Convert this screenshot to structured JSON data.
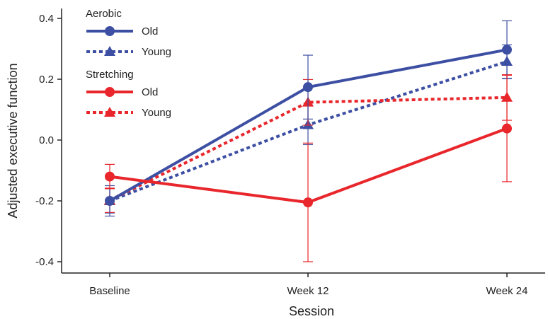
{
  "chart_data": {
    "type": "line",
    "categories": [
      "Baseline",
      "Week 12",
      "Week 24"
    ],
    "xlabel": "Session",
    "ylabel": "Adjusted executive function",
    "ylim": [
      -0.45,
      0.42
    ],
    "yticks": [
      "0.4",
      "0.2",
      "0.0",
      "-0.2",
      "-0.4"
    ],
    "ytick_values": [
      0.4,
      0.2,
      0.0,
      -0.2,
      -0.4
    ],
    "legend_groups": [
      {
        "title": "Aerobic",
        "entries": [
          "Old",
          "Young"
        ]
      },
      {
        "title": "Stretching",
        "entries": [
          "Old",
          "Young"
        ]
      }
    ],
    "legend_position": "top-left",
    "colors": {
      "aerobic": "#3d4fa3",
      "stretching": "#e8262b"
    },
    "series": [
      {
        "group": "Aerobic",
        "name": "Old",
        "color": "#3d4fa3",
        "dash": "solid",
        "marker": "circle",
        "values": [
          -0.2,
          0.174,
          0.297
        ],
        "err": [
          0.05,
          0.105,
          0.095
        ]
      },
      {
        "group": "Aerobic",
        "name": "Young",
        "color": "#3d4fa3",
        "dash": "dotted",
        "marker": "triangle",
        "values": [
          -0.2,
          0.05,
          0.258
        ],
        "err": [
          0.04,
          0.065,
          0.055
        ]
      },
      {
        "group": "Stretching",
        "name": "Old",
        "color": "#e8262b",
        "dash": "solid",
        "marker": "circle",
        "values": [
          -0.12,
          -0.205,
          0.038
        ],
        "err": [
          0.04,
          0.195,
          0.175
        ]
      },
      {
        "group": "Stretching",
        "name": "Young",
        "color": "#e8262b",
        "dash": "dotted",
        "marker": "triangle",
        "values": [
          -0.198,
          0.124,
          0.14
        ],
        "err": [
          0.04,
          0.075,
          0.075
        ]
      }
    ]
  }
}
